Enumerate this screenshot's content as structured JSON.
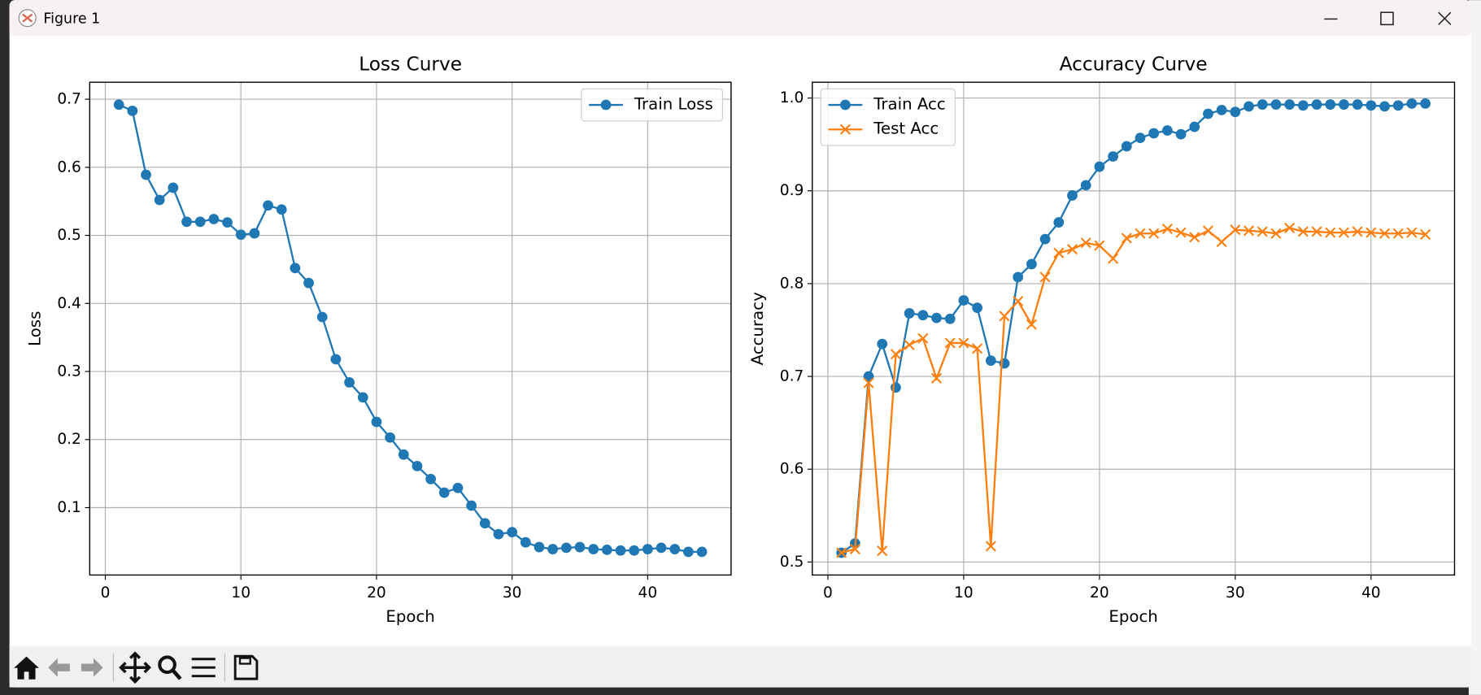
{
  "window": {
    "title": "Figure 1"
  },
  "chart_data": [
    {
      "type": "line",
      "title": "Loss Curve",
      "xlabel": "Epoch",
      "ylabel": "Loss",
      "x": [
        1,
        2,
        3,
        4,
        5,
        6,
        7,
        8,
        9,
        10,
        11,
        12,
        13,
        14,
        15,
        16,
        17,
        18,
        19,
        20,
        21,
        22,
        23,
        24,
        25,
        26,
        27,
        28,
        29,
        30,
        31,
        32,
        33,
        34,
        35,
        36,
        37,
        38,
        39,
        40,
        41,
        42,
        43,
        44
      ],
      "series": [
        {
          "name": "Train Loss",
          "color": "#1f77b4",
          "marker": "o",
          "values": [
            0.692,
            0.683,
            0.589,
            0.552,
            0.57,
            0.52,
            0.52,
            0.524,
            0.519,
            0.501,
            0.503,
            0.544,
            0.538,
            0.452,
            0.43,
            0.38,
            0.318,
            0.284,
            0.262,
            0.226,
            0.203,
            0.178,
            0.161,
            0.142,
            0.122,
            0.129,
            0.103,
            0.077,
            0.061,
            0.064,
            0.049,
            0.042,
            0.039,
            0.041,
            0.042,
            0.039,
            0.038,
            0.037,
            0.037,
            0.039,
            0.041,
            0.039,
            0.035,
            0.035
          ]
        }
      ],
      "xlim": [
        -1.15,
        46.15
      ],
      "ylim": [
        0.001,
        0.725
      ],
      "xticks": [
        0,
        10,
        20,
        30,
        40
      ],
      "yticks": [
        0.1,
        0.2,
        0.3,
        0.4,
        0.5,
        0.6,
        0.7
      ],
      "grid": true,
      "legend": "upper right"
    },
    {
      "type": "line",
      "title": "Accuracy Curve",
      "xlabel": "Epoch",
      "ylabel": "Accuracy",
      "x": [
        1,
        2,
        3,
        4,
        5,
        6,
        7,
        8,
        9,
        10,
        11,
        12,
        13,
        14,
        15,
        16,
        17,
        18,
        19,
        20,
        21,
        22,
        23,
        24,
        25,
        26,
        27,
        28,
        29,
        30,
        31,
        32,
        33,
        34,
        35,
        36,
        37,
        38,
        39,
        40,
        41,
        42,
        43,
        44
      ],
      "series": [
        {
          "name": "Train Acc",
          "color": "#1f77b4",
          "marker": "o",
          "values": [
            0.51,
            0.52,
            0.7,
            0.735,
            0.688,
            0.768,
            0.766,
            0.763,
            0.762,
            0.782,
            0.774,
            0.717,
            0.714,
            0.807,
            0.821,
            0.848,
            0.866,
            0.895,
            0.906,
            0.926,
            0.937,
            0.948,
            0.957,
            0.962,
            0.965,
            0.961,
            0.969,
            0.983,
            0.987,
            0.985,
            0.991,
            0.993,
            0.993,
            0.993,
            0.992,
            0.993,
            0.993,
            0.993,
            0.993,
            0.992,
            0.991,
            0.992,
            0.994,
            0.994
          ]
        },
        {
          "name": "Test Acc",
          "color": "#ff7f0e",
          "marker": "x",
          "values": [
            0.51,
            0.514,
            0.693,
            0.512,
            0.724,
            0.734,
            0.741,
            0.698,
            0.736,
            0.736,
            0.73,
            0.517,
            0.765,
            0.781,
            0.756,
            0.807,
            0.833,
            0.837,
            0.844,
            0.841,
            0.827,
            0.849,
            0.854,
            0.854,
            0.859,
            0.855,
            0.85,
            0.857,
            0.845,
            0.858,
            0.857,
            0.856,
            0.854,
            0.86,
            0.856,
            0.856,
            0.855,
            0.855,
            0.856,
            0.855,
            0.854,
            0.854,
            0.855,
            0.853
          ]
        }
      ],
      "xlim": [
        -1.15,
        46.15
      ],
      "ylim": [
        0.486,
        1.017
      ],
      "xticks": [
        0,
        10,
        20,
        30,
        40
      ],
      "yticks": [
        0.5,
        0.6,
        0.7,
        0.8,
        0.9,
        {
          "value": 1.0,
          "label": "1.0"
        }
      ],
      "grid": true,
      "legend": "upper left"
    }
  ]
}
